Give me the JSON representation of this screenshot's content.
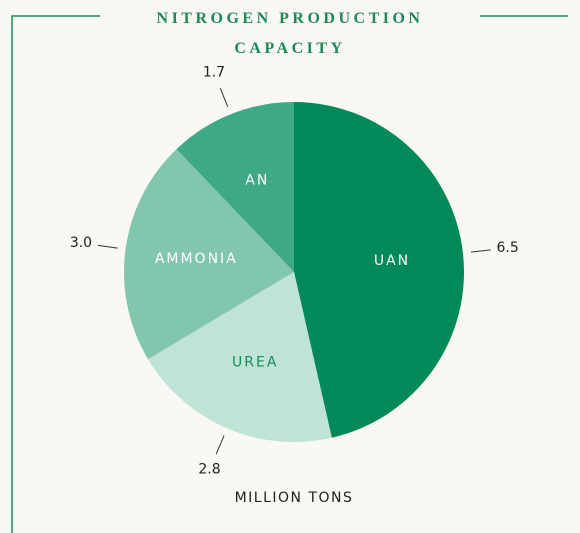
{
  "chart_data": {
    "type": "pie",
    "title": "NITROGEN PRODUCTION CAPACITY",
    "categories": [
      "UAN",
      "UREA",
      "AMMONIA",
      "AN"
    ],
    "values": [
      6.5,
      2.8,
      3.0,
      1.7
    ],
    "value_labels": [
      "6.5",
      "2.8",
      "3.0",
      "1.7"
    ],
    "colors": [
      "#008a5a",
      "#bfe3d6",
      "#82c6ae",
      "#3fa886"
    ],
    "footer": "MILLION TONS"
  }
}
